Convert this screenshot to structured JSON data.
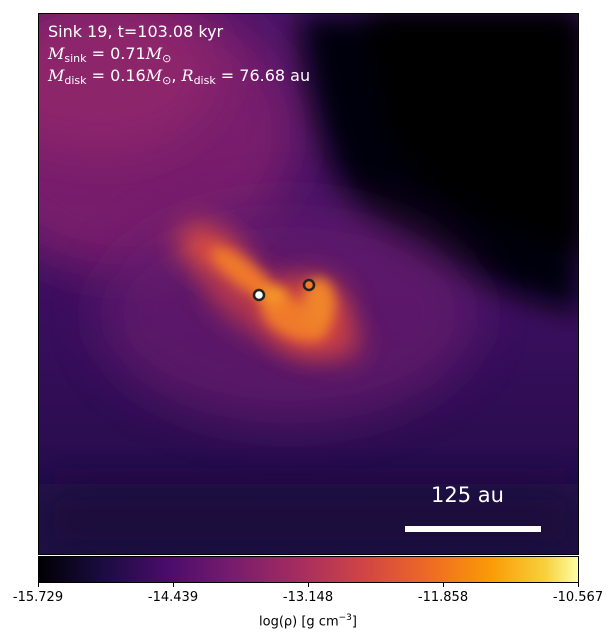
{
  "annotation": {
    "line1": "Sink 19, t=103.08 kyr",
    "m_sink_symbol": "M",
    "m_sink_sub": "sink",
    "m_sink_value": " = 0.71",
    "m_disk_symbol": "M",
    "m_disk_sub": "disk",
    "m_disk_value": " = 0.16",
    "r_disk_symbol": "R",
    "r_disk_sub": "disk",
    "r_disk_value": " = 76.68",
    "r_disk_unit": " au",
    "solar_mass_symbol": "M",
    "solar_sub": "⊙"
  },
  "scalebar": {
    "label": "125 au"
  },
  "colorbar": {
    "ticks": [
      "-15.729",
      "-14.439",
      "-13.148",
      "-11.858",
      "-10.567"
    ],
    "label_prefix": "log(ρ) [g cm",
    "label_exp": "−3",
    "label_suffix": "]",
    "colormap": "inferno"
  },
  "sinks": [
    {
      "name": "primary sink",
      "fill": "#ffffff"
    },
    {
      "name": "secondary sink",
      "fill": "#f07a2a"
    }
  ]
}
